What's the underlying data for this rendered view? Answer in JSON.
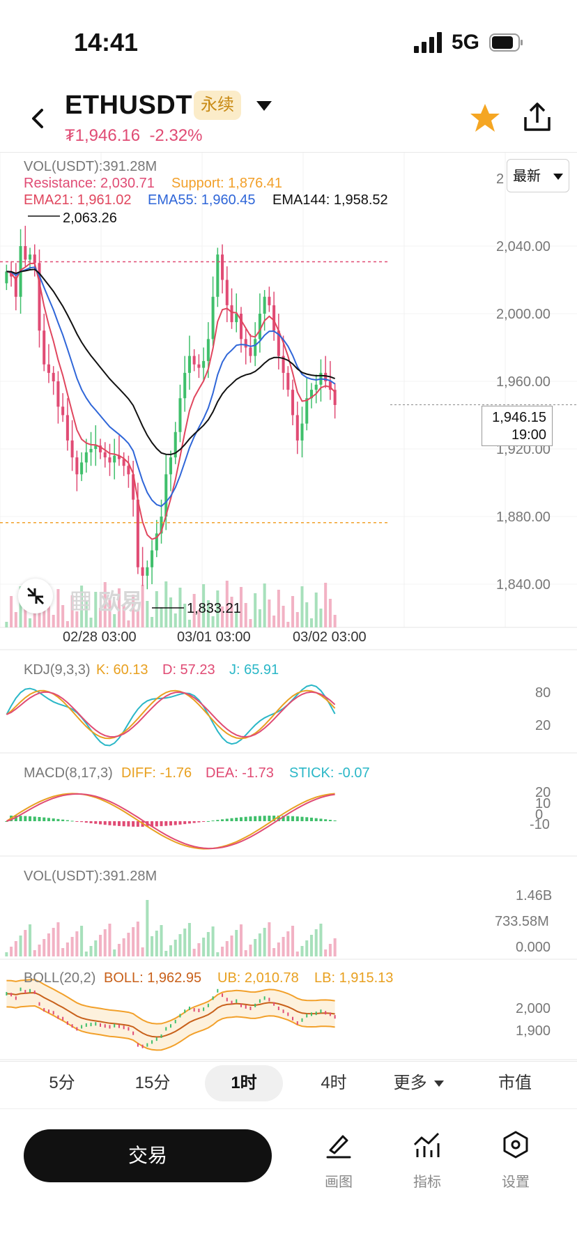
{
  "status_bar": {
    "time": "14:41",
    "network": "5G"
  },
  "header": {
    "pair": "ETHUSDT",
    "badge": "永续",
    "last_price": "₮1,946.16",
    "change": "-2.32%"
  },
  "chart": {
    "vol_label": "VOL(USDT):391.28M",
    "resistance": "Resistance: 2,030.71",
    "support": "Support: 1,876.41",
    "ema21": "EMA21: 1,961.02",
    "ema55": "EMA55: 1,960.45",
    "ema144": "EMA144: 1,958.52",
    "high_marker": "2,063.26",
    "low_marker": "1,833.21",
    "latest_dropdown": "最新",
    "price_tag": "1,946.15",
    "countdown": "19:00",
    "watermark": "欧易",
    "y_axis_top_fragment": "2",
    "y_axis": [
      "2,040.00",
      "2,000.00",
      "1,960.00",
      "1,920.00",
      "1,880.00",
      "1,840.00"
    ],
    "x_axis": [
      "02/28 03:00",
      "03/01 03:00",
      "03/02 03:00"
    ]
  },
  "kdj": {
    "name": "KDJ(9,3,3)",
    "k": "K: 60.13",
    "d": "D: 57.23",
    "j": "J: 65.91",
    "y_axis": [
      "80",
      "20"
    ]
  },
  "macd": {
    "name": "MACD(8,17,3)",
    "diff": "DIFF: -1.76",
    "dea": "DEA: -1.73",
    "stick": "STICK: -0.07",
    "y_axis": [
      "20",
      "10",
      "0",
      "-10"
    ]
  },
  "volume": {
    "name": "VOL(USDT):391.28M",
    "y_axis": [
      "1.46B",
      "733.58M",
      "0.000"
    ]
  },
  "boll": {
    "name": "BOLL(20,2)",
    "mid": "BOLL: 1,962.95",
    "ub": "UB: 2,010.78",
    "lb": "LB: 1,915.13",
    "y_axis": [
      "2,000",
      "1,900"
    ]
  },
  "timeframes": [
    {
      "label": "5分"
    },
    {
      "label": "15分"
    },
    {
      "label": "1时",
      "active": true
    },
    {
      "label": "4时"
    },
    {
      "label": "更多"
    },
    {
      "label": "市值"
    }
  ],
  "bottom": {
    "trade_label": "交易",
    "draw_label": "画图",
    "indicator_label": "指标",
    "settings_label": "设置"
  },
  "colors": {
    "up": "#3fbf6b",
    "down": "#e04b74",
    "ema21": "#e0465e",
    "ema55": "#2f66d8",
    "ema144": "#111111",
    "support": "#f2a02a",
    "resistance": "#e04b74",
    "kdj_k": "#e8a020",
    "kdj_d": "#e04b74",
    "kdj_j": "#2ab7c7"
  }
}
